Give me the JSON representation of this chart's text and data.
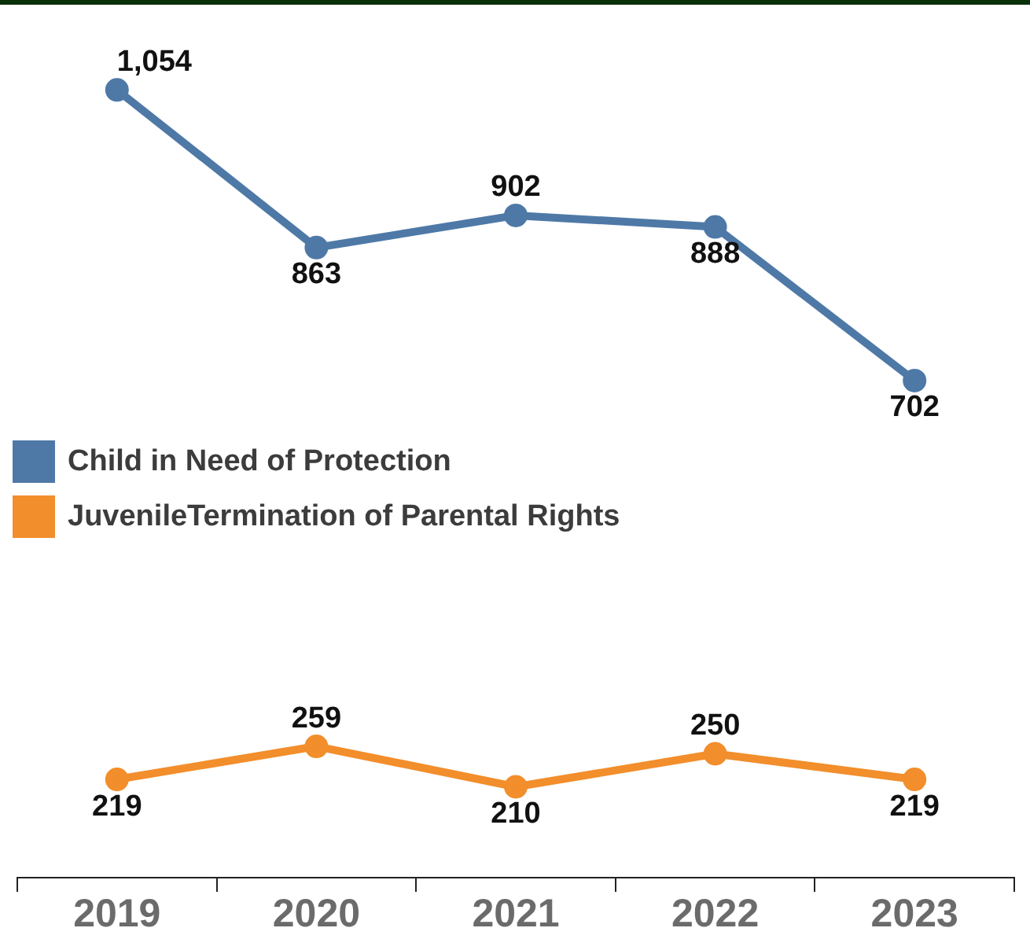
{
  "chart_data": {
    "type": "line",
    "categories": [
      "2019",
      "2020",
      "2021",
      "2022",
      "2023"
    ],
    "series": [
      {
        "name": "Child in Need of Protection",
        "color": "#4e79a7",
        "values": [
          1054,
          863,
          902,
          888,
          702
        ],
        "value_labels": [
          "1,054",
          "863",
          "902",
          "888",
          "702"
        ]
      },
      {
        "name": "JuvenileTermination of Parental Rights",
        "color": "#f28e2b",
        "values": [
          219,
          259,
          210,
          250,
          219
        ],
        "value_labels": [
          "219",
          "259",
          "210",
          "250",
          "219"
        ]
      }
    ],
    "legend": "left",
    "marker": "circle",
    "line_style": "solid"
  }
}
